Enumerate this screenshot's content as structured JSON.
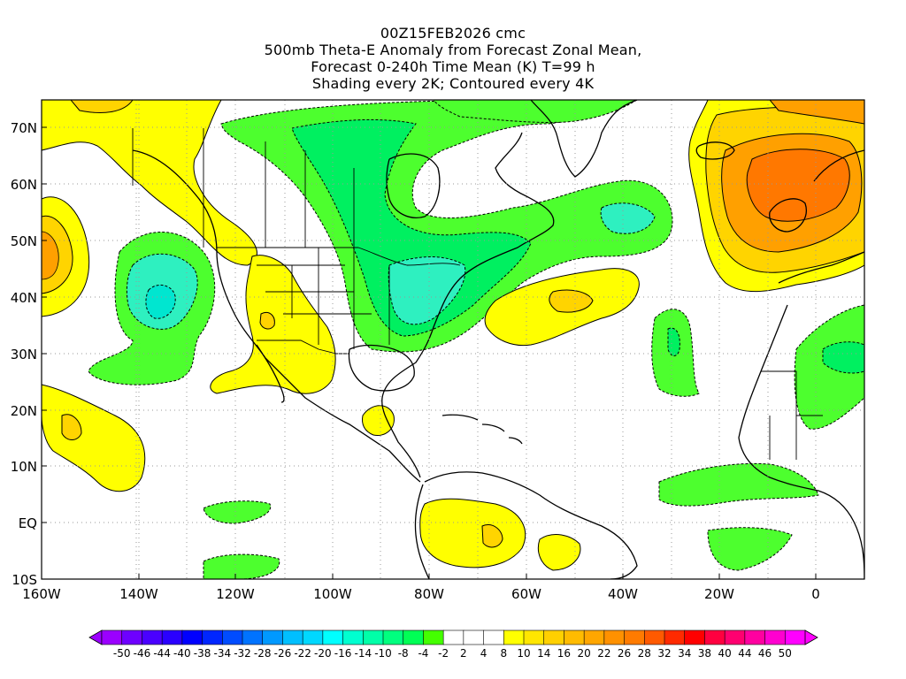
{
  "title": {
    "line1": "00Z15FEB2026 cmc",
    "line2": "500mb Theta-E Anomaly from Forecast Zonal Mean,",
    "line3": "Forecast 0-240h Time Mean (K) T=99 h",
    "line4": "Shading every 2K; Contoured every 4K"
  },
  "axes": {
    "lat_labels": [
      "70N",
      "60N",
      "50N",
      "40N",
      "30N",
      "20N",
      "10N",
      "EQ",
      "10S"
    ],
    "lon_labels": [
      "160W",
      "140W",
      "120W",
      "100W",
      "80W",
      "60W",
      "40W",
      "20W",
      "0"
    ]
  },
  "colorbar": {
    "labels": [
      "-50",
      "-46",
      "-44",
      "-40",
      "-38",
      "-34",
      "-32",
      "-28",
      "-26",
      "-22",
      "-20",
      "-16",
      "-14",
      "-10",
      "-8",
      "-4",
      "-2",
      "2",
      "4",
      "8",
      "10",
      "14",
      "16",
      "20",
      "22",
      "26",
      "28",
      "32",
      "34",
      "38",
      "40",
      "44",
      "46",
      "50"
    ],
    "colors": [
      "#9b00ff",
      "#6e00ff",
      "#4a00ff",
      "#2a00ff",
      "#0000ff",
      "#0026ff",
      "#004cff",
      "#0073ff",
      "#0099ff",
      "#00bfff",
      "#00d8ff",
      "#00ffff",
      "#00ffd0",
      "#00ffa8",
      "#00ff7f",
      "#00ff55",
      "#44ff00",
      "#ffffff",
      "#ffffff",
      "#ffffff",
      "#ffff00",
      "#ffe600",
      "#ffd000",
      "#ffbb00",
      "#ffa600",
      "#ff9100",
      "#ff7b00",
      "#ff5a00",
      "#ff2a00",
      "#ff0000",
      "#ff0040",
      "#ff0070",
      "#ff00a0",
      "#ff00d0",
      "#ff00ff"
    ]
  },
  "colors": {
    "green": "#4dff2e",
    "green_dark": "#00f060",
    "cyan": "#2ef0c0",
    "yellow": "#ffff00",
    "yellow_dark": "#ffd400",
    "orange": "#ffa000",
    "orange_dark": "#ff7800"
  }
}
